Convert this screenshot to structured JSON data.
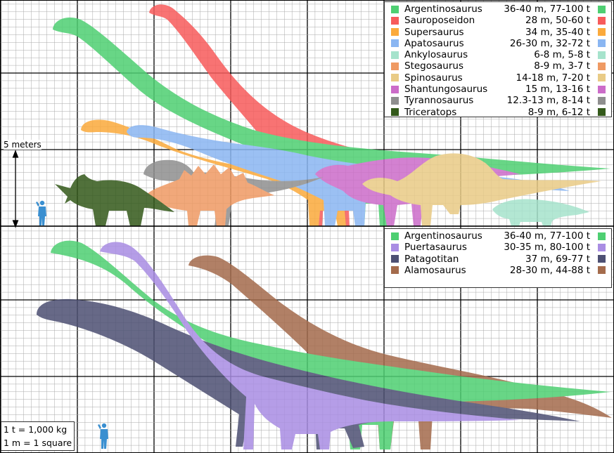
{
  "top_panel": {
    "scale_label": "5 meters",
    "legend": [
      {
        "name": "Argentinosaurus",
        "size": "36-40 m, 77-100 t",
        "color": "#4ecf72"
      },
      {
        "name": "Sauroposeidon",
        "size": "28 m, 50-60 t",
        "color": "#f75b5b"
      },
      {
        "name": "Supersaurus",
        "size": "34 m, 35-40 t",
        "color": "#fbaa3c"
      },
      {
        "name": "Apatosaurus",
        "size": "26-30 m, 32-72 t",
        "color": "#8ab6f2"
      },
      {
        "name": "Ankylosaurus",
        "size": "6-8 m, 5-8 t",
        "color": "#a6e3cc"
      },
      {
        "name": "Stegosaurus",
        "size": "8-9 m, 3-7 t",
        "color": "#ef9a63"
      },
      {
        "name": "Spinosaurus",
        "size": "14-18 m, 7-20 t",
        "color": "#e9cb86"
      },
      {
        "name": "Shantungosaurus",
        "size": "15 m, 13-16 t",
        "color": "#cc6cc9"
      },
      {
        "name": "Tyrannosaurus",
        "size": "12.3-13 m, 8-14 t",
        "color": "#8f8f8f"
      },
      {
        "name": "Triceratops",
        "size": "8-9 m, 6-12 t",
        "color": "#33591a"
      }
    ]
  },
  "bottom_panel": {
    "legend": [
      {
        "name": "Argentinosaurus",
        "size": "36-40 m, 77-100 t",
        "color": "#4ecf72"
      },
      {
        "name": "Puertasaurus",
        "size": "30-35 m, 80-100 t",
        "color": "#a98de3"
      },
      {
        "name": "Patagotitan",
        "size": "37 m, 69-77 t",
        "color": "#4d5073"
      },
      {
        "name": "Alamosaurus",
        "size": "28-30 m, 44-88 t",
        "color": "#a46b4c"
      }
    ],
    "notes": [
      "1 t = 1,000 kg",
      "1 m = 1 square"
    ]
  },
  "human_color": "#3a8fd0",
  "icons": [
    "human-figure-icon",
    "scale-arrow-icon"
  ]
}
